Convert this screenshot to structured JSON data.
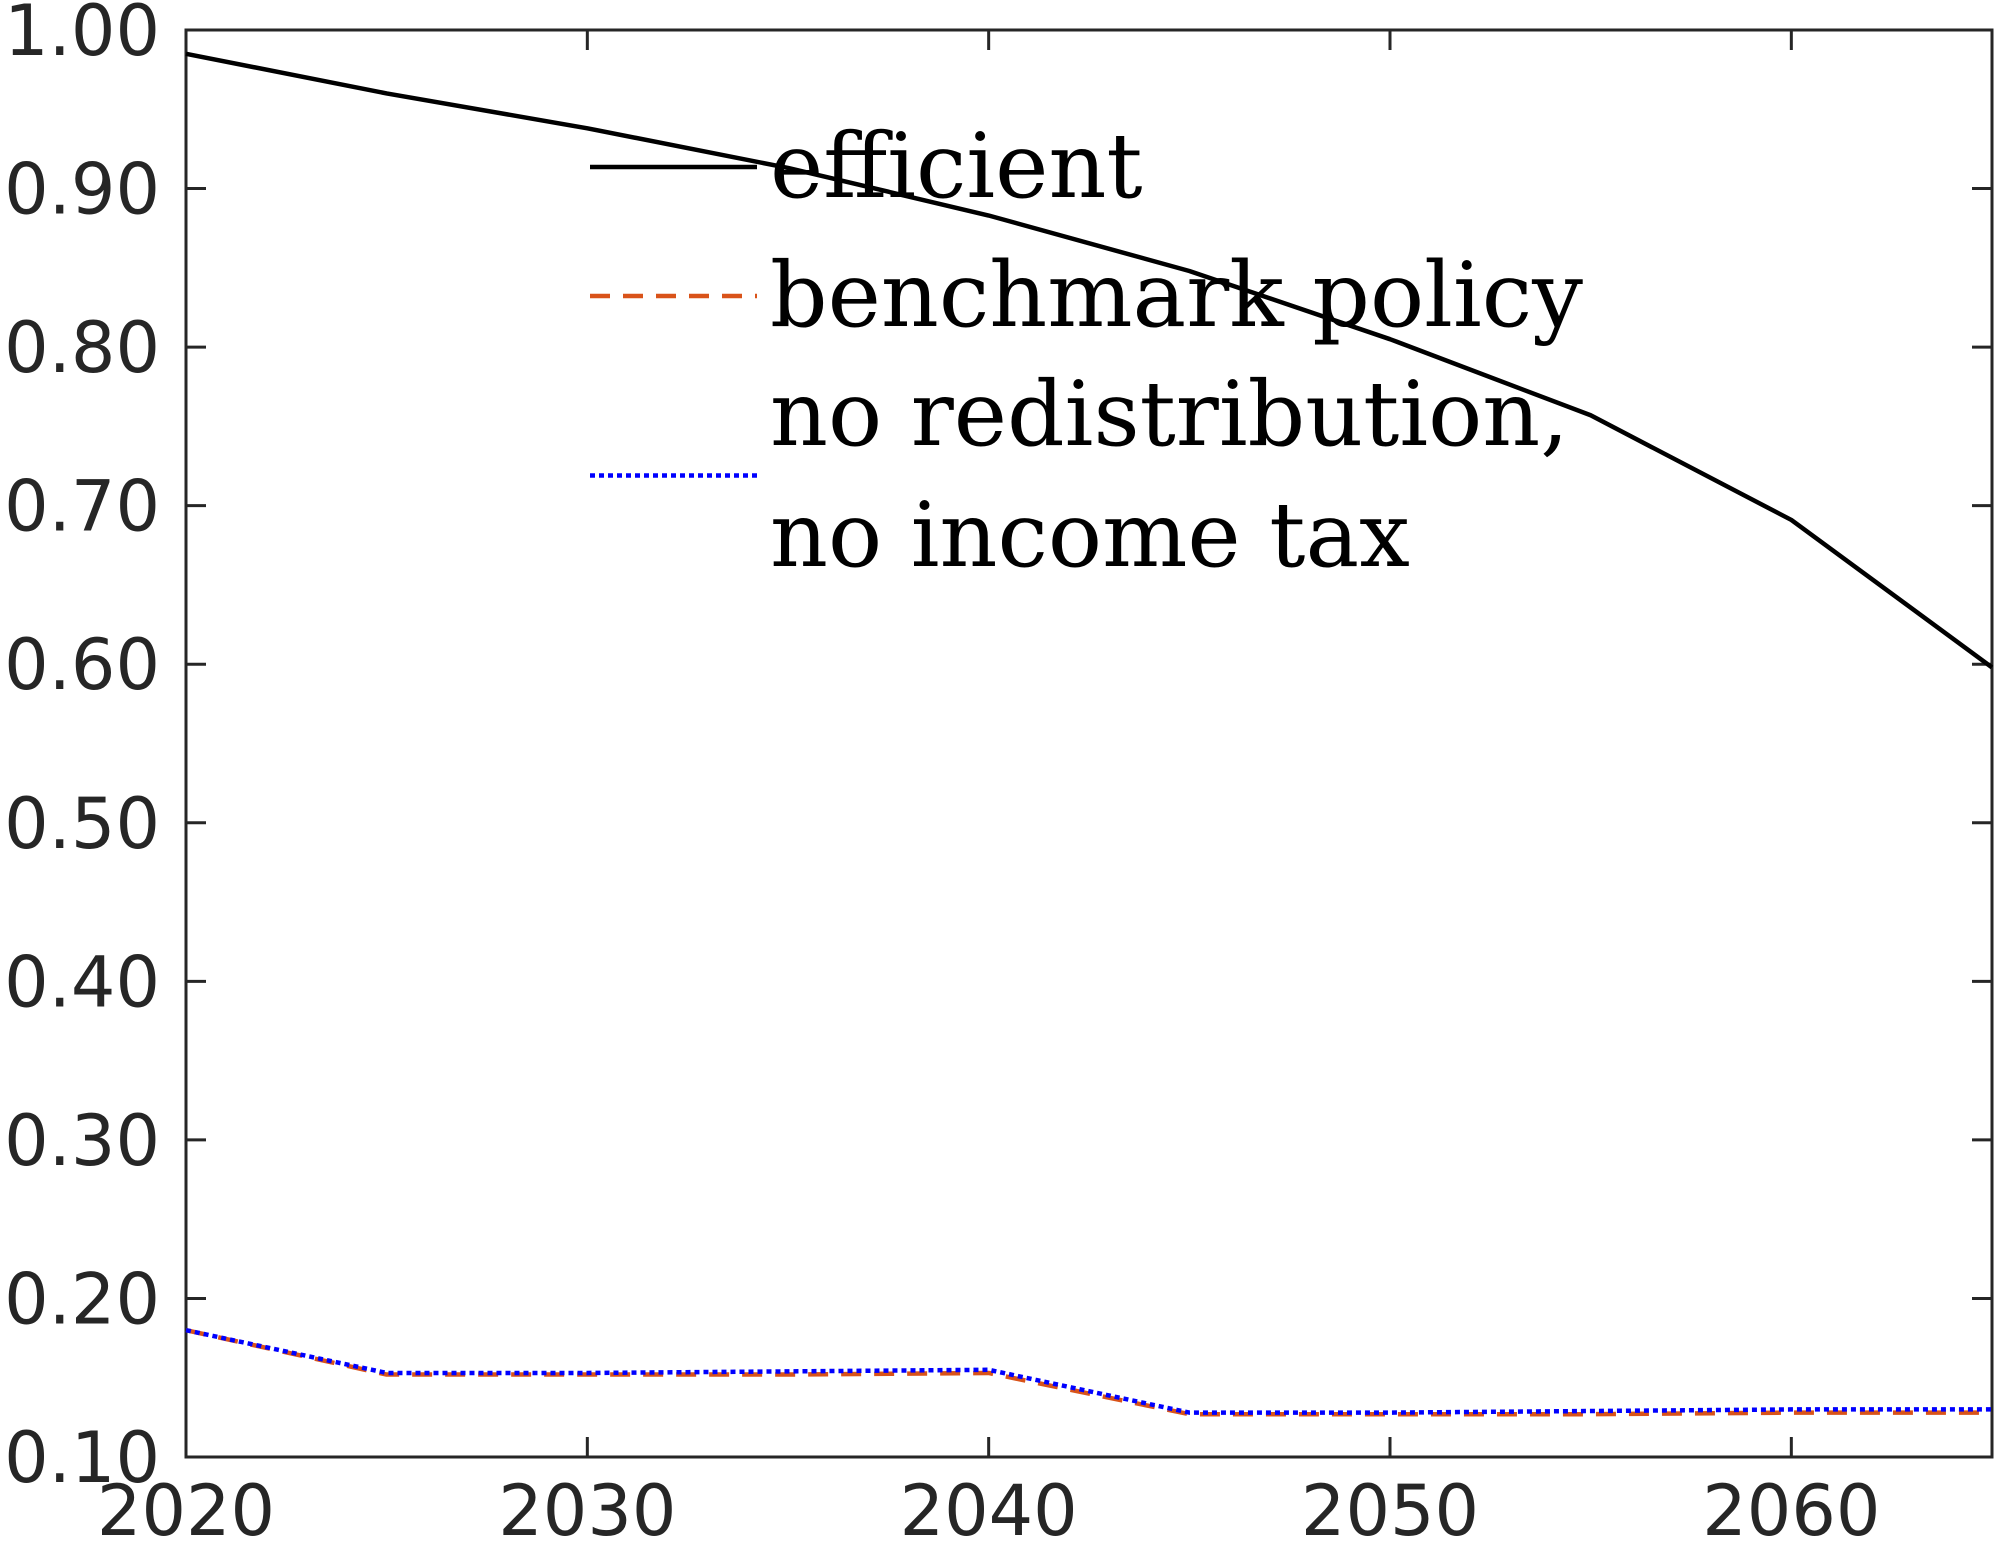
{
  "chart_data": {
    "type": "line",
    "title": "",
    "xlabel": "",
    "ylabel": "",
    "xlim": [
      2020,
      2065
    ],
    "ylim": [
      0.1,
      1.0
    ],
    "x_ticks": [
      2020,
      2030,
      2040,
      2050,
      2060
    ],
    "y_ticks": [
      0.1,
      0.2,
      0.3,
      0.4,
      0.5,
      0.6,
      0.7,
      0.8,
      0.9,
      1.0
    ],
    "x_tick_labels": [
      "2020",
      "2030",
      "2040",
      "2050",
      "2060"
    ],
    "y_tick_labels": [
      "0.10",
      "0.20",
      "0.30",
      "0.40",
      "0.50",
      "0.60",
      "0.70",
      "0.80",
      "0.90",
      "1.00"
    ],
    "grid": false,
    "legend_position": "top-center",
    "x": [
      2020,
      2025,
      2030,
      2035,
      2040,
      2045,
      2050,
      2055,
      2060,
      2065
    ],
    "series": [
      {
        "name": "efficient",
        "color": "#000000",
        "style": "solid",
        "values": [
          0.985,
          0.96,
          0.938,
          0.913,
          0.883,
          0.848,
          0.805,
          0.757,
          0.691,
          0.598
        ]
      },
      {
        "name": "benchmark policy",
        "color": "#d95319",
        "style": "dashed",
        "values": [
          0.18,
          0.152,
          0.152,
          0.152,
          0.153,
          0.127,
          0.127,
          0.127,
          0.128,
          0.128
        ]
      },
      {
        "name": "no redistribution,\nno income tax",
        "color": "#0000ff",
        "style": "dotted",
        "values": [
          0.18,
          0.153,
          0.153,
          0.154,
          0.155,
          0.128,
          0.128,
          0.129,
          0.13,
          0.13
        ]
      }
    ]
  }
}
